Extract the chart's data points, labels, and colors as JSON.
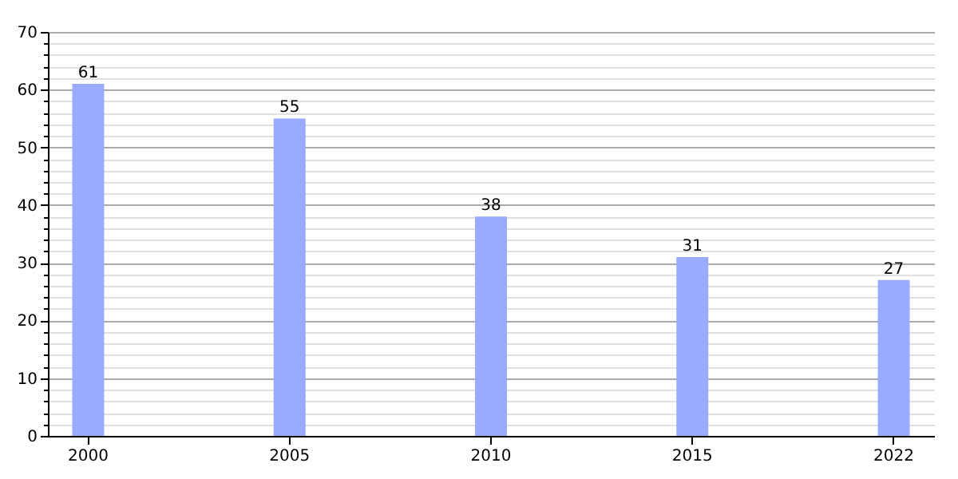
{
  "chart_data": {
    "type": "bar",
    "categories": [
      "2000",
      "2005",
      "2010",
      "2015",
      "2022"
    ],
    "values": [
      61,
      55,
      38,
      31,
      27
    ],
    "color": "#99aaff",
    "data_labels": true,
    "ylim": [
      0,
      70
    ],
    "yticks": [
      0,
      {
        "value": 2,
        "label": null
      },
      {
        "value": 4,
        "label": null
      },
      {
        "value": 6,
        "label": null
      },
      {
        "value": 8,
        "label": null
      },
      10,
      {
        "value": 12,
        "label": null
      },
      {
        "value": 14,
        "label": null
      },
      {
        "value": 16,
        "label": null
      },
      {
        "value": 18,
        "label": null
      },
      20,
      {
        "value": 22,
        "label": null
      },
      {
        "value": 24,
        "label": null
      },
      {
        "value": 26,
        "label": null
      },
      {
        "value": 28,
        "label": null
      },
      30,
      {
        "value": 32,
        "label": null
      },
      {
        "value": 34,
        "label": null
      },
      {
        "value": 36,
        "label": null
      },
      {
        "value": 38,
        "label": null
      },
      40,
      {
        "value": 42,
        "label": null
      },
      {
        "value": 44,
        "label": null
      },
      {
        "value": 46,
        "label": null
      },
      {
        "value": 48,
        "label": null
      },
      50,
      {
        "value": 52,
        "label": null
      },
      {
        "value": 54,
        "label": null
      },
      {
        "value": 56,
        "label": null
      },
      {
        "value": 58,
        "label": null
      },
      60,
      {
        "value": 62,
        "label": null
      },
      {
        "value": 64,
        "label": null
      },
      {
        "value": 66,
        "label": null
      },
      {
        "value": 68,
        "label": null
      },
      70
    ],
    "grid": true
  }
}
